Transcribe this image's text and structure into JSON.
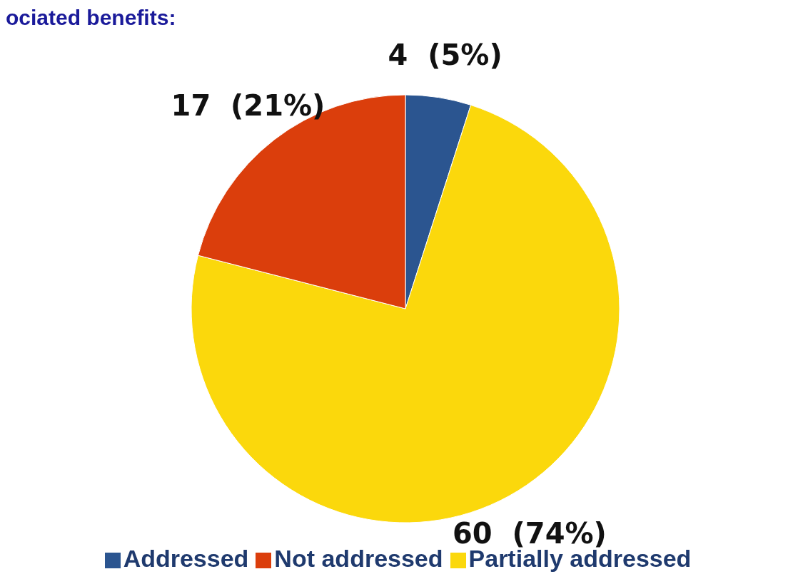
{
  "chart_data": {
    "type": "pie",
    "title": "ociated benefits:",
    "categories": [
      "Addressed",
      "Partially addressed",
      "Not addressed"
    ],
    "values": [
      4,
      60,
      17
    ],
    "colors": [
      "#2b5590",
      "#fbd80c",
      "#db3e0c"
    ],
    "value_labels": [
      "4  (5%)",
      "60  (74%)",
      "17  (21%)"
    ],
    "legend": "bottom"
  }
}
